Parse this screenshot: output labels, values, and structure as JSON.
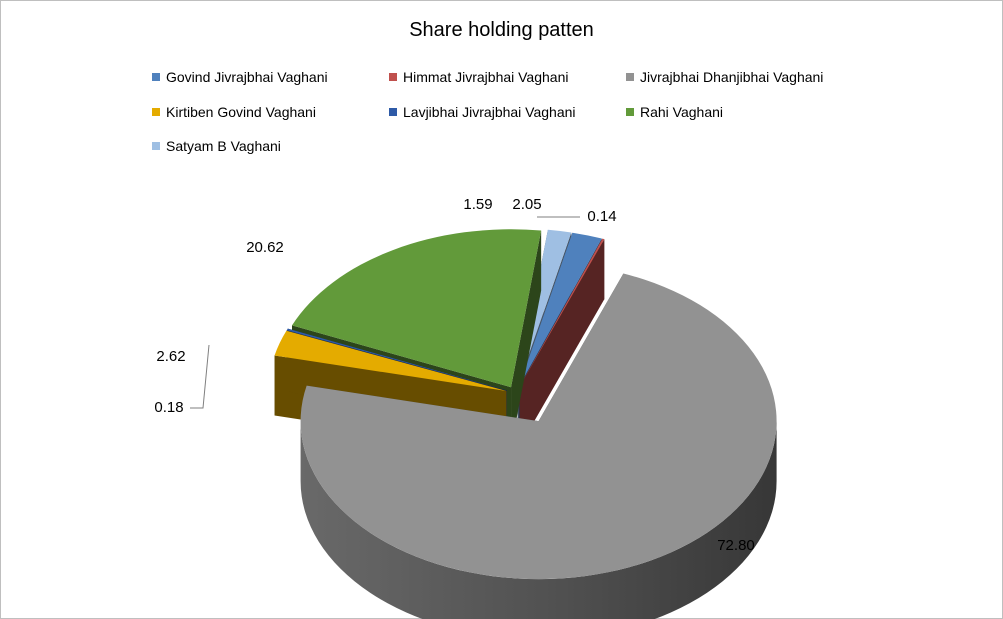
{
  "chart_data": {
    "type": "pie",
    "title": "Share holding patten",
    "legend_position": "top",
    "style": "3d-exploded",
    "slices": [
      {
        "name": "Govind Jivrajbhai Vaghani",
        "value": 2.05,
        "label": "2.05",
        "color": "#4f81bd"
      },
      {
        "name": "Himmat Jivrajbhai Vaghani",
        "value": 0.14,
        "label": "0.14",
        "color": "#c0504d"
      },
      {
        "name": "Jivrajbhai Dhanjibhai Vaghani",
        "value": 72.8,
        "label": "72.80",
        "color": "#929292"
      },
      {
        "name": "Kirtiben Govind Vaghani",
        "value": 2.62,
        "label": "2.62",
        "color": "#e4ab00"
      },
      {
        "name": "Lavjibhai Jivrajbhai Vaghani",
        "value": 0.18,
        "label": "0.18",
        "color": "#2e5aa7"
      },
      {
        "name": "Rahi Vaghani",
        "value": 20.62,
        "label": "20.62",
        "color": "#629a3a"
      },
      {
        "name": "Satyam B Vaghani",
        "value": 1.59,
        "label": "1.59",
        "color": "#9fbfe3"
      }
    ]
  }
}
